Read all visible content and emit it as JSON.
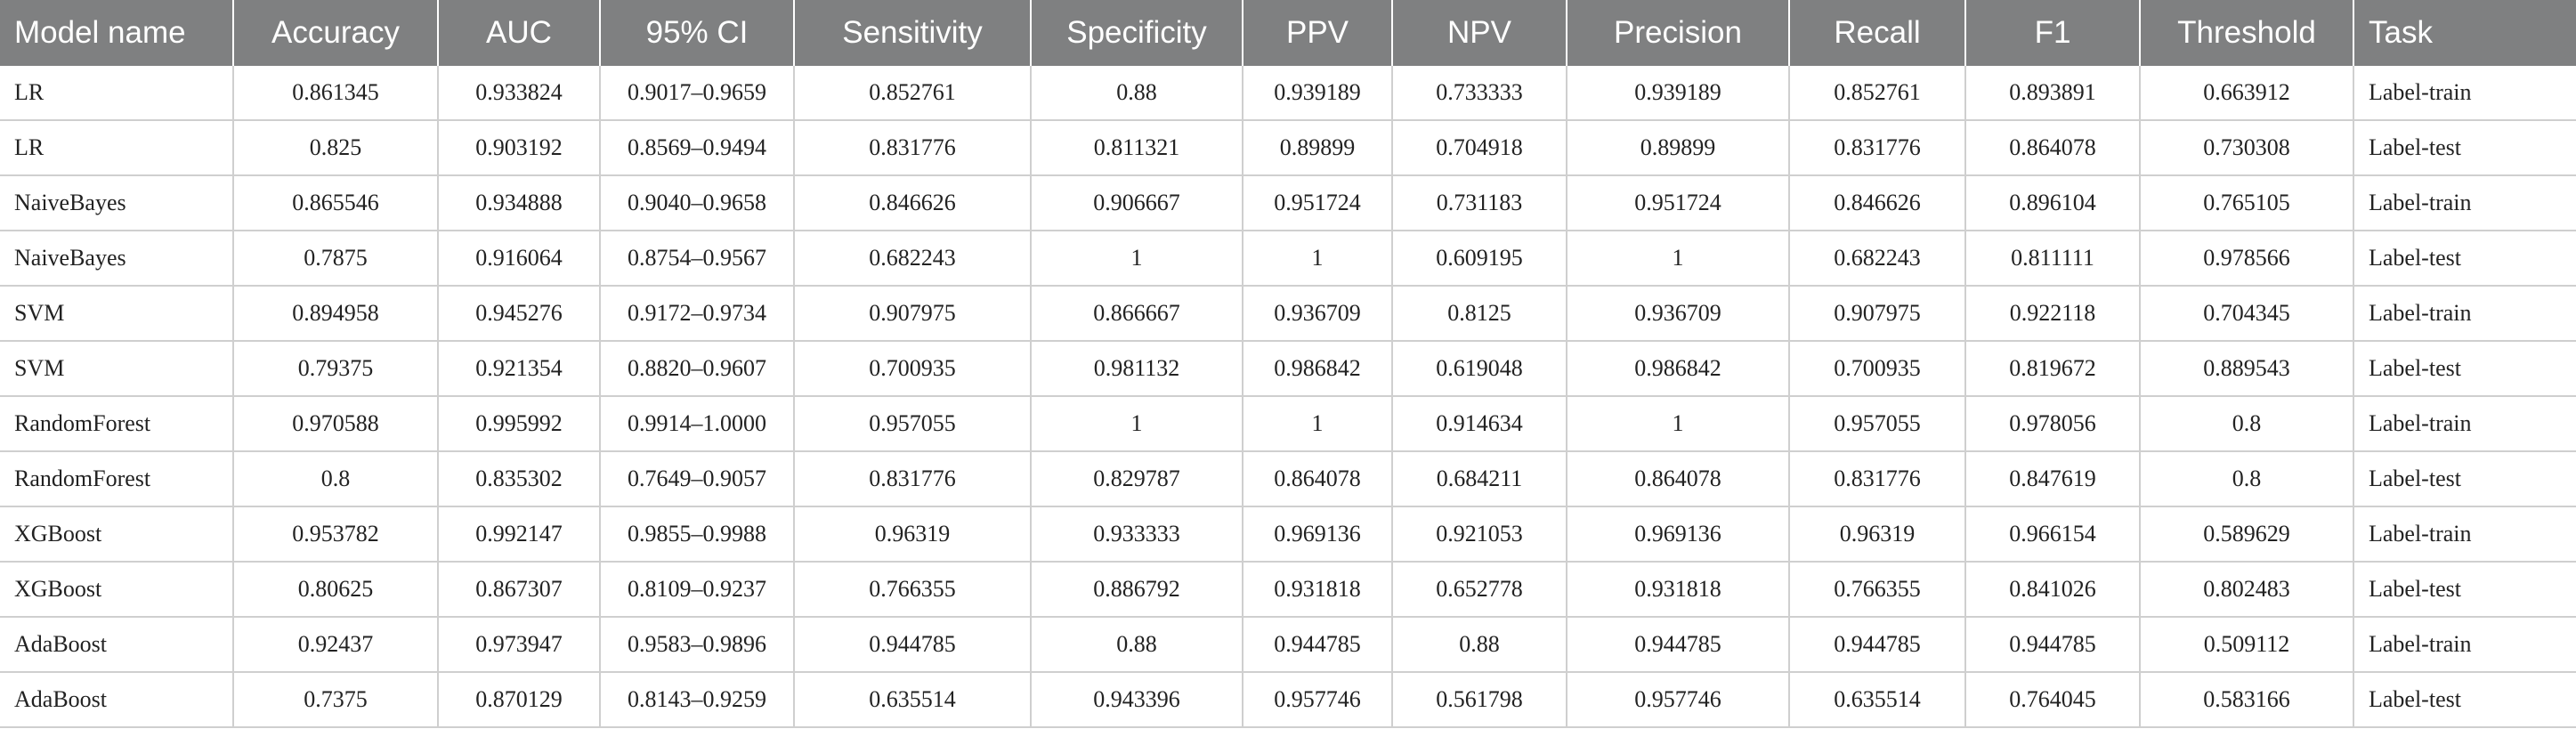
{
  "table": {
    "headers": [
      "Model name",
      "Accuracy",
      "AUC",
      "95% CI",
      "Sensitivity",
      "Specificity",
      "PPV",
      "NPV",
      "Precision",
      "Recall",
      "F1",
      "Threshold",
      "Task"
    ],
    "rows": [
      [
        "LR",
        "0.861345",
        "0.933824",
        "0.9017–0.9659",
        "0.852761",
        "0.88",
        "0.939189",
        "0.733333",
        "0.939189",
        "0.852761",
        "0.893891",
        "0.663912",
        "Label-train"
      ],
      [
        "LR",
        "0.825",
        "0.903192",
        "0.8569–0.9494",
        "0.831776",
        "0.811321",
        "0.89899",
        "0.704918",
        "0.89899",
        "0.831776",
        "0.864078",
        "0.730308",
        "Label-test"
      ],
      [
        "NaiveBayes",
        "0.865546",
        "0.934888",
        "0.9040–0.9658",
        "0.846626",
        "0.906667",
        "0.951724",
        "0.731183",
        "0.951724",
        "0.846626",
        "0.896104",
        "0.765105",
        "Label-train"
      ],
      [
        "NaiveBayes",
        "0.7875",
        "0.916064",
        "0.8754–0.9567",
        "0.682243",
        "1",
        "1",
        "0.609195",
        "1",
        "0.682243",
        "0.811111",
        "0.978566",
        "Label-test"
      ],
      [
        "SVM",
        "0.894958",
        "0.945276",
        "0.9172–0.9734",
        "0.907975",
        "0.866667",
        "0.936709",
        "0.8125",
        "0.936709",
        "0.907975",
        "0.922118",
        "0.704345",
        "Label-train"
      ],
      [
        "SVM",
        "0.79375",
        "0.921354",
        "0.8820–0.9607",
        "0.700935",
        "0.981132",
        "0.986842",
        "0.619048",
        "0.986842",
        "0.700935",
        "0.819672",
        "0.889543",
        "Label-test"
      ],
      [
        "RandomForest",
        "0.970588",
        "0.995992",
        "0.9914–1.0000",
        "0.957055",
        "1",
        "1",
        "0.914634",
        "1",
        "0.957055",
        "0.978056",
        "0.8",
        "Label-train"
      ],
      [
        "RandomForest",
        "0.8",
        "0.835302",
        "0.7649–0.9057",
        "0.831776",
        "0.829787",
        "0.864078",
        "0.684211",
        "0.864078",
        "0.831776",
        "0.847619",
        "0.8",
        "Label-test"
      ],
      [
        "XGBoost",
        "0.953782",
        "0.992147",
        "0.9855–0.9988",
        "0.96319",
        "0.933333",
        "0.969136",
        "0.921053",
        "0.969136",
        "0.96319",
        "0.966154",
        "0.589629",
        "Label-train"
      ],
      [
        "XGBoost",
        "0.80625",
        "0.867307",
        "0.8109–0.9237",
        "0.766355",
        "0.886792",
        "0.931818",
        "0.652778",
        "0.931818",
        "0.766355",
        "0.841026",
        "0.802483",
        "Label-test"
      ],
      [
        "AdaBoost",
        "0.92437",
        "0.973947",
        "0.9583–0.9896",
        "0.944785",
        "0.88",
        "0.944785",
        "0.88",
        "0.944785",
        "0.944785",
        "0.944785",
        "0.509112",
        "Label-train"
      ],
      [
        "AdaBoost",
        "0.7375",
        "0.870129",
        "0.8143–0.9259",
        "0.635514",
        "0.943396",
        "0.957746",
        "0.561798",
        "0.957746",
        "0.635514",
        "0.764045",
        "0.583166",
        "Label-test"
      ]
    ]
  },
  "colors": {
    "header_bg": "#7f8081",
    "header_text": "#ffffff",
    "grid_line": "#cfcfcf",
    "cell_text": "#222222"
  }
}
